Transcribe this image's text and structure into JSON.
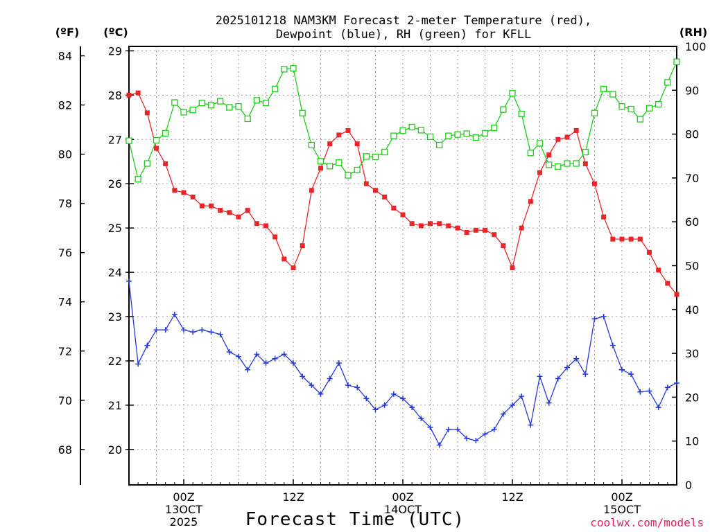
{
  "chart_data": {
    "type": "line",
    "title_lines": [
      "2025101218 NAM3KM Forecast 2-meter Temperature (red),",
      "Dewpoint (blue), RH (green) for KFLL"
    ],
    "xlabel": "Forecast Time (UTC)",
    "credit": "coolwx.com/models",
    "units": {
      "fahrenheit": "(ºF)",
      "celsius": "(ºC)",
      "rh": "(RH)"
    },
    "x_range": [
      0,
      60
    ],
    "x_ticks": [
      {
        "x": 6,
        "lines": [
          "00Z",
          "13OCT",
          "2025"
        ]
      },
      {
        "x": 18,
        "lines": [
          "12Z"
        ]
      },
      {
        "x": 30,
        "lines": [
          "00Z",
          "14OCT"
        ]
      },
      {
        "x": 42,
        "lines": [
          "12Z"
        ]
      },
      {
        "x": 54,
        "lines": [
          "00Z",
          "15OCT"
        ]
      }
    ],
    "celsius_axis": {
      "range": [
        19.2,
        29.1
      ],
      "ticks": [
        "20",
        "21",
        "22",
        "23",
        "24",
        "25",
        "26",
        "27",
        "28",
        "29"
      ]
    },
    "fahrenheit_axis": {
      "range": [
        66.56,
        84.38
      ],
      "ticks": [
        "68",
        "70",
        "72",
        "74",
        "76",
        "78",
        "80",
        "82",
        "84"
      ]
    },
    "rh_axis": {
      "range": [
        0,
        100
      ],
      "ticks": [
        "0",
        "10",
        "20",
        "30",
        "40",
        "50",
        "60",
        "70",
        "80",
        "90",
        "100"
      ]
    },
    "series": [
      {
        "name": "2-meter Temperature",
        "units": "°C",
        "color": "#e8262a",
        "marker": "filled-square",
        "values": [
          28.0,
          28.05,
          27.6,
          26.8,
          26.45,
          25.85,
          25.8,
          25.7,
          25.5,
          25.5,
          25.4,
          25.35,
          25.25,
          25.4,
          25.1,
          25.05,
          24.8,
          24.3,
          24.1,
          24.6,
          25.85,
          26.35,
          26.9,
          27.1,
          27.2,
          26.9,
          26.0,
          25.85,
          25.7,
          25.45,
          25.3,
          25.1,
          25.05,
          25.1,
          25.1,
          25.05,
          25.0,
          24.9,
          24.95,
          24.95,
          24.85,
          24.6,
          24.1,
          25.0,
          25.6,
          26.25,
          26.65,
          27.0,
          27.05,
          27.2,
          26.45,
          26.0,
          25.25,
          24.75,
          24.75,
          24.75,
          24.75,
          24.45,
          24.05,
          23.75,
          23.5
        ]
      },
      {
        "name": "Dewpoint",
        "units": "°C",
        "color": "#2438d6",
        "marker": "plus",
        "values": [
          23.8,
          21.93,
          22.35,
          22.7,
          22.7,
          23.05,
          22.7,
          22.65,
          22.7,
          22.65,
          22.6,
          22.2,
          22.1,
          21.8,
          22.15,
          21.95,
          22.05,
          22.15,
          21.95,
          21.65,
          21.45,
          21.25,
          21.6,
          21.95,
          21.45,
          21.4,
          21.15,
          20.9,
          21.0,
          21.25,
          21.15,
          20.95,
          20.7,
          20.5,
          20.1,
          20.45,
          20.45,
          20.25,
          20.2,
          20.35,
          20.45,
          20.8,
          21.0,
          21.2,
          20.55,
          21.65,
          21.05,
          21.6,
          21.85,
          22.05,
          21.7,
          22.95,
          23.0,
          22.35,
          21.8,
          21.7,
          21.3,
          21.32,
          20.95,
          21.4,
          21.5
        ]
      },
      {
        "name": "RH",
        "units": "%",
        "color": "#22c91e",
        "marker": "open-square",
        "values": [
          78.5,
          69.7,
          73.3,
          78.6,
          80.2,
          87.2,
          85.0,
          85.5,
          87.1,
          86.6,
          87.5,
          86.1,
          86.3,
          83.5,
          87.7,
          87.1,
          90.3,
          94.8,
          95.0,
          84.8,
          77.5,
          73.8,
          72.7,
          73.5,
          70.6,
          71.8,
          74.9,
          74.8,
          75.9,
          79.6,
          80.8,
          81.6,
          80.9,
          79.4,
          77.5,
          79.6,
          79.9,
          80.1,
          79.2,
          80.2,
          81.4,
          85.6,
          89.3,
          84.6,
          75.7,
          77.9,
          73.0,
          72.6,
          73.3,
          73.3,
          75.9,
          84.8,
          90.3,
          89.1,
          86.3,
          85.7,
          83.4,
          85.9,
          86.8,
          91.8,
          96.5
        ]
      }
    ]
  }
}
